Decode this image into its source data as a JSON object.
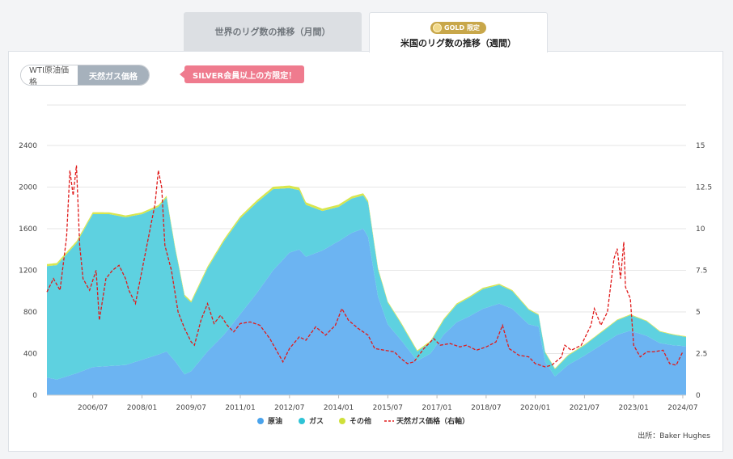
{
  "tabs": {
    "inactive_label": "世界のリグ数の推移（月間）",
    "active_label": "米国のリグ数の推移（週間）",
    "badge_text": "GOLD 限定"
  },
  "toggle": {
    "wti_label": "WTI原油価格",
    "gas_label": "天然ガス価格"
  },
  "silver_note": "SILVER会員以上の方限定！",
  "source": "出所：Baker Hughes",
  "colors": {
    "oil": "#6cb4f2",
    "gas": "#5ed1e0",
    "other": "#d8e64e",
    "price": "#e01a1a",
    "grid": "#e6e6e6"
  },
  "chart_data": {
    "type": "area",
    "x_unit": "year",
    "xlim": [
      2005.1,
      2024.6
    ],
    "x_ticks": [
      {
        "label": "2006/07",
        "x": 2006.5
      },
      {
        "label": "2008/01",
        "x": 2008.0
      },
      {
        "label": "2009/07",
        "x": 2009.5
      },
      {
        "label": "2011/01",
        "x": 2011.0
      },
      {
        "label": "2012/07",
        "x": 2012.5
      },
      {
        "label": "2014/01",
        "x": 2014.0
      },
      {
        "label": "2015/07",
        "x": 2015.5
      },
      {
        "label": "2017/01",
        "x": 2017.0
      },
      {
        "label": "2018/07",
        "x": 2018.5
      },
      {
        "label": "2020/01",
        "x": 2020.0
      },
      {
        "label": "2021/07",
        "x": 2021.5
      },
      {
        "label": "2023/01",
        "x": 2023.0
      },
      {
        "label": "2024/07",
        "x": 2024.5
      }
    ],
    "y_left": {
      "ticks": [
        "0",
        "400",
        "800",
        "1200",
        "1600",
        "2000",
        "2400"
      ],
      "ylim": [
        0,
        2400
      ]
    },
    "y_right": {
      "ticks": [
        "0",
        "2.5",
        "5",
        "7.5",
        "10",
        "12.5",
        "15"
      ],
      "ylim": [
        0,
        15
      ]
    },
    "legend": [
      {
        "name": "原油",
        "color": "#4aa3ec",
        "marker": "dot"
      },
      {
        "name": "ガス",
        "color": "#2fc3d6",
        "marker": "dot"
      },
      {
        "name": "その他",
        "color": "#cfe03a",
        "marker": "dot"
      },
      {
        "name": "天然ガス価格（右軸）",
        "color": "#e01a1a",
        "marker": "dash"
      }
    ],
    "series": [
      {
        "name": "原油",
        "axis": "left",
        "stack": true,
        "points": [
          [
            2005.1,
            170
          ],
          [
            2005.4,
            150
          ],
          [
            2006.0,
            210
          ],
          [
            2006.5,
            270
          ],
          [
            2007.0,
            280
          ],
          [
            2007.5,
            290
          ],
          [
            2008.0,
            340
          ],
          [
            2008.5,
            390
          ],
          [
            2008.75,
            420
          ],
          [
            2009.0,
            330
          ],
          [
            2009.3,
            200
          ],
          [
            2009.5,
            230
          ],
          [
            2010.0,
            420
          ],
          [
            2010.5,
            580
          ],
          [
            2011.0,
            780
          ],
          [
            2011.5,
            980
          ],
          [
            2012.0,
            1200
          ],
          [
            2012.5,
            1370
          ],
          [
            2012.8,
            1400
          ],
          [
            2013.0,
            1330
          ],
          [
            2013.5,
            1390
          ],
          [
            2014.0,
            1480
          ],
          [
            2014.4,
            1560
          ],
          [
            2014.75,
            1600
          ],
          [
            2014.9,
            1520
          ],
          [
            2015.2,
            950
          ],
          [
            2015.5,
            680
          ],
          [
            2015.9,
            530
          ],
          [
            2016.4,
            330
          ],
          [
            2016.8,
            400
          ],
          [
            2017.2,
            580
          ],
          [
            2017.6,
            700
          ],
          [
            2018.0,
            760
          ],
          [
            2018.4,
            830
          ],
          [
            2018.9,
            880
          ],
          [
            2019.3,
            830
          ],
          [
            2019.8,
            680
          ],
          [
            2020.1,
            660
          ],
          [
            2020.3,
            320
          ],
          [
            2020.6,
            180
          ],
          [
            2021.0,
            290
          ],
          [
            2021.5,
            380
          ],
          [
            2022.0,
            480
          ],
          [
            2022.5,
            580
          ],
          [
            2022.9,
            620
          ],
          [
            2023.4,
            570
          ],
          [
            2023.8,
            500
          ],
          [
            2024.2,
            480
          ],
          [
            2024.6,
            470
          ]
        ]
      },
      {
        "name": "ガス",
        "axis": "left",
        "stack": true,
        "points": [
          [
            2005.1,
            1070
          ],
          [
            2005.4,
            1100
          ],
          [
            2006.0,
            1250
          ],
          [
            2006.5,
            1470
          ],
          [
            2007.0,
            1460
          ],
          [
            2007.5,
            1420
          ],
          [
            2008.0,
            1400
          ],
          [
            2008.5,
            1420
          ],
          [
            2008.75,
            1480
          ],
          [
            2009.0,
            1100
          ],
          [
            2009.3,
            750
          ],
          [
            2009.5,
            660
          ],
          [
            2010.0,
            800
          ],
          [
            2010.5,
            900
          ],
          [
            2011.0,
            920
          ],
          [
            2011.5,
            870
          ],
          [
            2012.0,
            780
          ],
          [
            2012.5,
            620
          ],
          [
            2012.8,
            570
          ],
          [
            2013.0,
            500
          ],
          [
            2013.5,
            380
          ],
          [
            2014.0,
            330
          ],
          [
            2014.4,
            330
          ],
          [
            2014.75,
            320
          ],
          [
            2014.9,
            330
          ],
          [
            2015.2,
            260
          ],
          [
            2015.5,
            210
          ],
          [
            2015.9,
            160
          ],
          [
            2016.4,
            90
          ],
          [
            2016.8,
            110
          ],
          [
            2017.2,
            140
          ],
          [
            2017.6,
            170
          ],
          [
            2018.0,
            180
          ],
          [
            2018.4,
            190
          ],
          [
            2018.9,
            180
          ],
          [
            2019.3,
            170
          ],
          [
            2019.8,
            140
          ],
          [
            2020.1,
            110
          ],
          [
            2020.3,
            90
          ],
          [
            2020.6,
            70
          ],
          [
            2021.0,
            90
          ],
          [
            2021.5,
            100
          ],
          [
            2022.0,
            120
          ],
          [
            2022.5,
            140
          ],
          [
            2022.9,
            150
          ],
          [
            2023.4,
            140
          ],
          [
            2023.8,
            110
          ],
          [
            2024.2,
            100
          ],
          [
            2024.6,
            90
          ]
        ]
      },
      {
        "name": "その他",
        "axis": "left",
        "stack": true,
        "points": [
          [
            2005.1,
            20
          ],
          [
            2009.5,
            15
          ],
          [
            2011.0,
            20
          ],
          [
            2012.5,
            25
          ],
          [
            2014.75,
            20
          ],
          [
            2015.5,
            10
          ],
          [
            2018.5,
            12
          ],
          [
            2020.1,
            8
          ],
          [
            2024.6,
            6
          ]
        ]
      },
      {
        "name": "天然ガス価格（右軸）",
        "axis": "right",
        "style": "dashed",
        "points": [
          [
            2005.1,
            6.2
          ],
          [
            2005.3,
            7.0
          ],
          [
            2005.5,
            6.3
          ],
          [
            2005.7,
            9.5
          ],
          [
            2005.8,
            13.5
          ],
          [
            2005.9,
            12.0
          ],
          [
            2006.0,
            13.8
          ],
          [
            2006.1,
            9.0
          ],
          [
            2006.2,
            7.0
          ],
          [
            2006.4,
            6.3
          ],
          [
            2006.6,
            7.5
          ],
          [
            2006.7,
            4.5
          ],
          [
            2006.9,
            7.0
          ],
          [
            2007.1,
            7.5
          ],
          [
            2007.3,
            7.8
          ],
          [
            2007.5,
            7.0
          ],
          [
            2007.6,
            6.3
          ],
          [
            2007.8,
            5.5
          ],
          [
            2008.0,
            7.5
          ],
          [
            2008.2,
            9.5
          ],
          [
            2008.4,
            11.5
          ],
          [
            2008.5,
            13.5
          ],
          [
            2008.6,
            12.5
          ],
          [
            2008.7,
            9.0
          ],
          [
            2008.9,
            7.5
          ],
          [
            2009.1,
            5.0
          ],
          [
            2009.3,
            4.0
          ],
          [
            2009.5,
            3.2
          ],
          [
            2009.6,
            3.0
          ],
          [
            2009.8,
            4.5
          ],
          [
            2010.0,
            5.5
          ],
          [
            2010.2,
            4.3
          ],
          [
            2010.4,
            4.8
          ],
          [
            2010.6,
            4.2
          ],
          [
            2010.8,
            3.8
          ],
          [
            2011.0,
            4.3
          ],
          [
            2011.3,
            4.4
          ],
          [
            2011.6,
            4.2
          ],
          [
            2011.9,
            3.4
          ],
          [
            2012.1,
            2.7
          ],
          [
            2012.3,
            2.0
          ],
          [
            2012.5,
            2.8
          ],
          [
            2012.8,
            3.5
          ],
          [
            2013.0,
            3.3
          ],
          [
            2013.3,
            4.1
          ],
          [
            2013.6,
            3.6
          ],
          [
            2013.9,
            4.2
          ],
          [
            2014.1,
            5.2
          ],
          [
            2014.3,
            4.5
          ],
          [
            2014.6,
            4.0
          ],
          [
            2014.9,
            3.6
          ],
          [
            2015.1,
            2.8
          ],
          [
            2015.4,
            2.7
          ],
          [
            2015.7,
            2.6
          ],
          [
            2015.9,
            2.2
          ],
          [
            2016.1,
            1.9
          ],
          [
            2016.3,
            2.0
          ],
          [
            2016.6,
            2.8
          ],
          [
            2016.9,
            3.4
          ],
          [
            2017.1,
            3.0
          ],
          [
            2017.4,
            3.1
          ],
          [
            2017.7,
            2.9
          ],
          [
            2017.9,
            3.0
          ],
          [
            2018.2,
            2.7
          ],
          [
            2018.5,
            2.9
          ],
          [
            2018.8,
            3.2
          ],
          [
            2019.0,
            4.2
          ],
          [
            2019.2,
            2.8
          ],
          [
            2019.5,
            2.4
          ],
          [
            2019.8,
            2.3
          ],
          [
            2020.0,
            1.9
          ],
          [
            2020.3,
            1.7
          ],
          [
            2020.5,
            1.8
          ],
          [
            2020.8,
            2.3
          ],
          [
            2020.9,
            3.0
          ],
          [
            2021.1,
            2.7
          ],
          [
            2021.4,
            3.0
          ],
          [
            2021.7,
            4.2
          ],
          [
            2021.8,
            5.2
          ],
          [
            2022.0,
            4.2
          ],
          [
            2022.2,
            5.0
          ],
          [
            2022.4,
            8.2
          ],
          [
            2022.5,
            8.8
          ],
          [
            2022.6,
            7.0
          ],
          [
            2022.7,
            9.2
          ],
          [
            2022.75,
            6.5
          ],
          [
            2022.9,
            5.8
          ],
          [
            2023.0,
            3.0
          ],
          [
            2023.2,
            2.3
          ],
          [
            2023.4,
            2.6
          ],
          [
            2023.6,
            2.6
          ],
          [
            2023.9,
            2.7
          ],
          [
            2024.1,
            1.9
          ],
          [
            2024.3,
            1.8
          ],
          [
            2024.5,
            2.6
          ]
        ]
      }
    ]
  }
}
